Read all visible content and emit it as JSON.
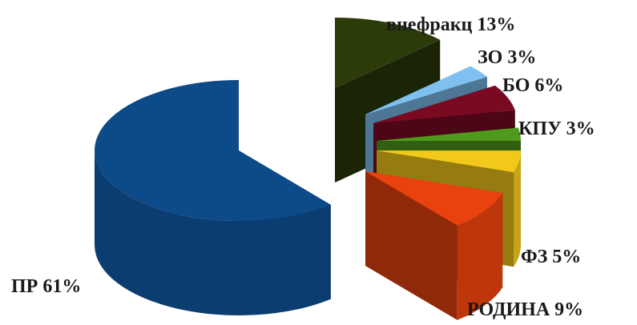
{
  "chart_data": {
    "type": "pie",
    "style": "3d-exploded",
    "title": "",
    "legend": "none",
    "slices": [
      {
        "name": "внефракц",
        "value": 13,
        "label": "внефракц 13%",
        "color": "#2c3b0a"
      },
      {
        "name": "ЗО",
        "value": 3,
        "label": "ЗО 3%",
        "color": "#7ec0f0"
      },
      {
        "name": "БО",
        "value": 6,
        "label": "БО 6%",
        "color": "#7a0a22"
      },
      {
        "name": "КПУ",
        "value": 3,
        "label": "КПУ 3%",
        "color": "#4f9a1c"
      },
      {
        "name": "ФЗ",
        "value": 5,
        "label": "ФЗ 5%",
        "color": "#f2c81a"
      },
      {
        "name": "РОДИНА",
        "value": 9,
        "label": "РОДИНА 9%",
        "color": "#e8420e"
      },
      {
        "name": "ПР",
        "value": 61,
        "label": "ПР 61%",
        "color": "#0d4a88"
      }
    ]
  }
}
